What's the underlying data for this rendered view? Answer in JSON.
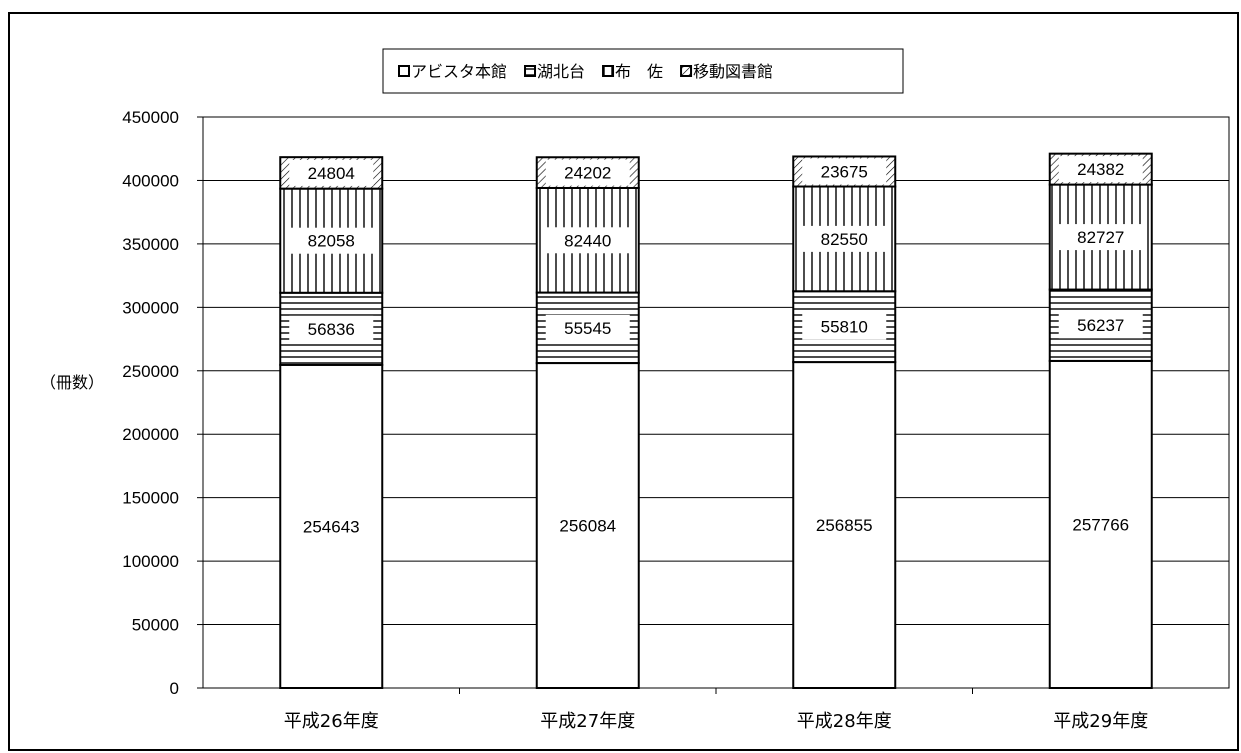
{
  "chart_data": {
    "type": "bar",
    "stacked": true,
    "categories": [
      "平成26年度",
      "平成27年度",
      "平成28年度",
      "平成29年度"
    ],
    "series": [
      {
        "name": "アビスタ本館",
        "values": [
          254643,
          256084,
          256855,
          257766
        ],
        "pattern": "blank"
      },
      {
        "name": "湖北台",
        "values": [
          56836,
          55545,
          55810,
          56237
        ],
        "pattern": "horizontal"
      },
      {
        "name": "布　佐",
        "values": [
          82058,
          82440,
          82550,
          82727
        ],
        "pattern": "vertical"
      },
      {
        "name": "移動図書館",
        "values": [
          24804,
          24202,
          23675,
          24382
        ],
        "pattern": "diagonal"
      }
    ],
    "ylabel": "（冊数）",
    "ylim": [
      0,
      450000
    ],
    "yticks": [
      0,
      50000,
      100000,
      150000,
      200000,
      250000,
      300000,
      350000,
      400000,
      450000
    ],
    "grid": true,
    "legend_position": "top-center"
  }
}
